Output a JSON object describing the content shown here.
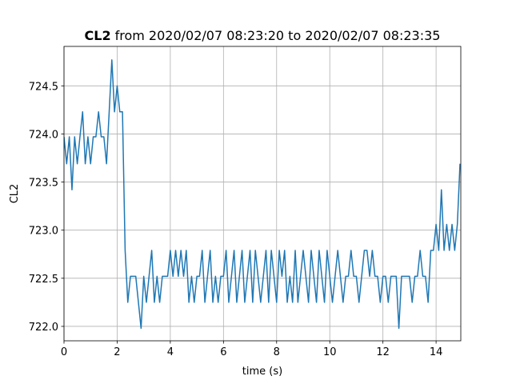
{
  "chart_data": {
    "type": "line",
    "title_bold": "CL2",
    "title": "from 2020/02/07 08:23:20 to 2020/02/07 08:23:35",
    "xlabel": "time (s)",
    "ylabel": "CL2",
    "color": "#1f77b4",
    "grid": true,
    "xlim": [
      0,
      14.93
    ],
    "ylim": [
      721.85,
      724.91
    ],
    "xticks": [
      0,
      2,
      4,
      6,
      8,
      10,
      12,
      14
    ],
    "yticks": [
      {
        "value": 722,
        "label": "722.0"
      },
      722.5,
      {
        "value": 723,
        "label": "723.0"
      },
      723.5,
      {
        "value": 724,
        "label": "724.0"
      },
      724.5
    ],
    "x": [
      0,
      0.1,
      0.2,
      0.3,
      0.4,
      0.5,
      0.6,
      0.7,
      0.8,
      0.9,
      1,
      1.1,
      1.2,
      1.3,
      1.4,
      1.5,
      1.6,
      1.7,
      1.8,
      1.9,
      2,
      2.1,
      2.2,
      2.3,
      2.4,
      2.5,
      2.6,
      2.7,
      2.8,
      2.9,
      3,
      3.1,
      3.2,
      3.3,
      3.4,
      3.5,
      3.6,
      3.7,
      3.8,
      3.9,
      4,
      4.1,
      4.2,
      4.3,
      4.4,
      4.5,
      4.6,
      4.7,
      4.8,
      4.9,
      5,
      5.1,
      5.2,
      5.3,
      5.4,
      5.5,
      5.6,
      5.7,
      5.8,
      5.9,
      6,
      6.1,
      6.2,
      6.3,
      6.4,
      6.5,
      6.6,
      6.7,
      6.8,
      6.9,
      7,
      7.1,
      7.2,
      7.3,
      7.4,
      7.5,
      7.6,
      7.7,
      7.8,
      7.9,
      8,
      8.1,
      8.2,
      8.3,
      8.4,
      8.5,
      8.6,
      8.7,
      8.8,
      8.9,
      9,
      9.1,
      9.2,
      9.3,
      9.4,
      9.5,
      9.6,
      9.7,
      9.8,
      9.9,
      10,
      10.1,
      10.2,
      10.3,
      10.4,
      10.5,
      10.6,
      10.7,
      10.8,
      10.9,
      11,
      11.1,
      11.2,
      11.3,
      11.4,
      11.5,
      11.6,
      11.7,
      11.8,
      11.9,
      12,
      12.1,
      12.2,
      12.3,
      12.4,
      12.5,
      12.6,
      12.7,
      12.8,
      12.9,
      13,
      13.1,
      13.2,
      13.3,
      13.4,
      13.5,
      13.6,
      13.7,
      13.8,
      13.9,
      14,
      14.1,
      14.2,
      14.3,
      14.4,
      14.5,
      14.6,
      14.7,
      14.8,
      14.9
    ],
    "values": [
      723.97,
      723.69,
      723.97,
      723.42,
      723.97,
      723.69,
      723.97,
      724.23,
      723.69,
      723.97,
      723.69,
      723.97,
      723.97,
      724.23,
      723.97,
      723.97,
      723.69,
      724.23,
      724.77,
      724.23,
      724.5,
      724.23,
      724.23,
      722.79,
      722.25,
      722.52,
      722.52,
      722.52,
      722.25,
      721.98,
      722.52,
      722.25,
      722.52,
      722.79,
      722.25,
      722.52,
      722.25,
      722.52,
      722.52,
      722.52,
      722.79,
      722.52,
      722.79,
      722.52,
      722.79,
      722.52,
      722.79,
      722.25,
      722.52,
      722.25,
      722.52,
      722.52,
      722.79,
      722.25,
      722.52,
      722.79,
      722.25,
      722.52,
      722.25,
      722.52,
      722.52,
      722.79,
      722.25,
      722.52,
      722.79,
      722.25,
      722.52,
      722.79,
      722.25,
      722.52,
      722.79,
      722.25,
      722.79,
      722.52,
      722.25,
      722.52,
      722.79,
      722.25,
      722.79,
      722.52,
      722.25,
      722.79,
      722.52,
      722.79,
      722.25,
      722.52,
      722.25,
      722.79,
      722.25,
      722.52,
      722.79,
      722.52,
      722.25,
      722.79,
      722.52,
      722.25,
      722.79,
      722.52,
      722.25,
      722.79,
      722.52,
      722.25,
      722.52,
      722.79,
      722.52,
      722.25,
      722.52,
      722.52,
      722.79,
      722.52,
      722.52,
      722.25,
      722.52,
      722.79,
      722.79,
      722.52,
      722.79,
      722.52,
      722.52,
      722.25,
      722.52,
      722.52,
      722.25,
      722.52,
      722.52,
      722.52,
      721.98,
      722.52,
      722.52,
      722.52,
      722.52,
      722.25,
      722.52,
      722.52,
      722.79,
      722.52,
      722.52,
      722.25,
      722.79,
      722.79,
      723.06,
      722.79,
      723.42,
      722.79,
      723.06,
      722.79,
      723.06,
      722.79,
      723.06,
      723.69
    ]
  }
}
